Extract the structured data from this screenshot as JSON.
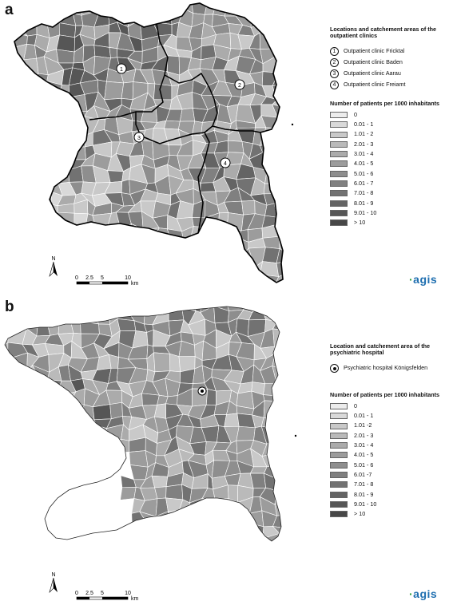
{
  "panel_a": {
    "label": "a",
    "legend_title": "Locations and catchement areas of the outpatient clinics",
    "clinics": [
      {
        "num": "1",
        "name": "Outpatient clinic Fricktal"
      },
      {
        "num": "2",
        "name": "Outpatient clinic Baden"
      },
      {
        "num": "3",
        "name": "Outpatient clinic Aarau"
      },
      {
        "num": "4",
        "name": "Outpatient clinic Freiamt"
      }
    ],
    "classes_title": "Number of patients per 1000 inhabitants",
    "classes": [
      "0",
      "0.01 - 1",
      "1.01 - 2",
      "2.01 - 3",
      "3.01 - 4",
      "4.01 - 5",
      "5.01 - 6",
      "6.01 - 7",
      "7.01 - 8",
      "8.01 - 9",
      "9.01 - 10",
      "> 10"
    ]
  },
  "panel_b": {
    "label": "b",
    "legend_title": "Location and catchement area of the psychiatric hospital",
    "hospital": "Psychiatric hospital Königsfelden",
    "classes_title": "Number of patients per 1000 inhabitants",
    "classes": [
      "0",
      "0.01 - 1",
      "1.01 -2",
      "2.01 - 3",
      "3.01 - 4",
      "4.01 - 5",
      "5.01 - 6",
      "6.01 -7",
      "7.01 - 8",
      "8.01 - 9",
      "9.01 - 10",
      "> 10"
    ]
  },
  "class_colors": [
    "#ececec",
    "#d9d9d9",
    "#c9c9c9",
    "#bababa",
    "#ababab",
    "#9c9c9c",
    "#8e8e8e",
    "#808080",
    "#727272",
    "#646464",
    "#565656",
    "#474747"
  ],
  "north_label": "N",
  "scale": {
    "ticks": [
      "0",
      "2.5",
      "5",
      "10"
    ],
    "unit": "km"
  },
  "logo": {
    "text": "agis"
  }
}
